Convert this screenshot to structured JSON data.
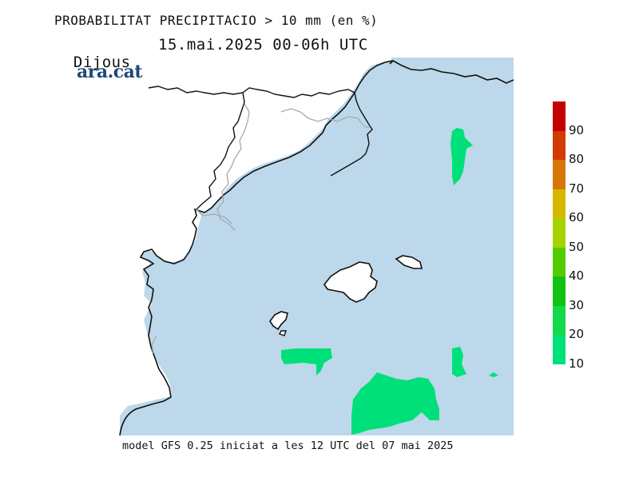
{
  "title": {
    "line1": "PROBABILITAT PRECIPITACIO > 10 mm (en %)",
    "day": "Dijous",
    "period": "15.mai.2025 00-06h UTC"
  },
  "logo": "ara.cat",
  "footer": "model GFS 0.25 iniciat a les 12 UTC del 07 mai 2025",
  "colors": {
    "sea": "#bcd8ea",
    "land": "#ffffff",
    "coast": "#111111",
    "border": "#a9a9a9",
    "precip_10": "#00e07a"
  },
  "legend": {
    "labels": [
      "90",
      "80",
      "70",
      "60",
      "50",
      "40",
      "30",
      "20",
      "10"
    ],
    "colors": [
      "#c40000",
      "#d33c00",
      "#d8760a",
      "#d6b800",
      "#a6d400",
      "#52cc00",
      "#12c212",
      "#14d94a",
      "#00e07a"
    ]
  }
}
